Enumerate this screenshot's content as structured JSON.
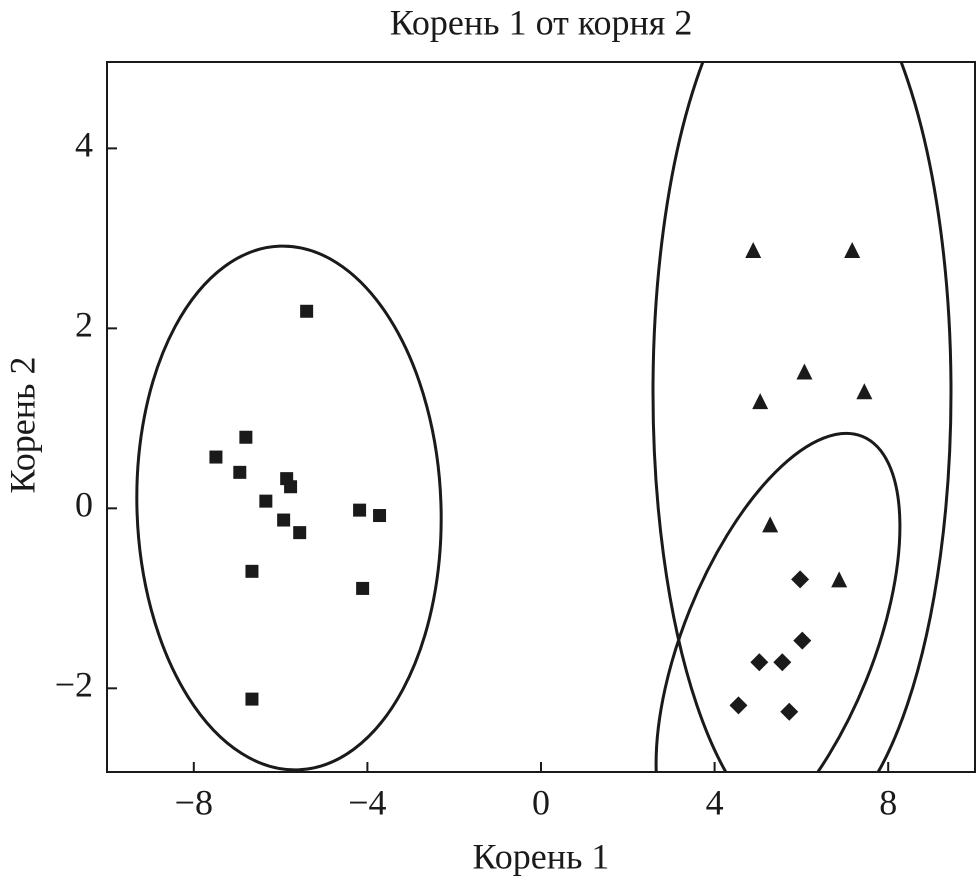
{
  "chart_data": {
    "type": "scatter",
    "title": "Корень 1 от корня 2",
    "x_label": "Корень 1",
    "y_label": "Корень 2",
    "xlim": [
      -10,
      10
    ],
    "ylim": [
      -2.93,
      4.96
    ],
    "xticks": [
      {
        "value": -8,
        "label": "−8"
      },
      {
        "value": -4,
        "label": "−4"
      },
      0,
      4,
      8
    ],
    "yticks": [
      {
        "value": -2,
        "label": "−2"
      },
      0,
      2,
      4
    ],
    "series": [
      {
        "marker": "square",
        "color": "#1a1a1a",
        "x": [
          -5.4,
          -7.49,
          -6.8,
          -6.94,
          -5.86,
          -5.77,
          -6.34,
          -5.93,
          -5.56,
          -4.18,
          -3.72,
          -6.66,
          -4.11,
          -6.66
        ],
        "values": [
          2.19,
          0.57,
          0.79,
          0.4,
          0.33,
          0.24,
          0.08,
          -0.13,
          -0.27,
          -0.02,
          -0.08,
          -0.7,
          -0.89,
          -2.12
        ]
      },
      {
        "marker": "triangle",
        "color": "#1a1a1a",
        "x": [
          4.89,
          7.17,
          6.07,
          5.05,
          7.45,
          5.28,
          6.87
        ],
        "values": [
          2.86,
          2.86,
          1.51,
          1.18,
          1.29,
          -0.19,
          -0.8
        ]
      },
      {
        "marker": "diamond",
        "color": "#1a1a1a",
        "x": [
          5.97,
          5.03,
          5.56,
          6.02,
          4.55,
          5.72
        ],
        "values": [
          -0.79,
          -1.71,
          -1.71,
          -1.47,
          -2.19,
          -2.26
        ]
      }
    ]
  }
}
